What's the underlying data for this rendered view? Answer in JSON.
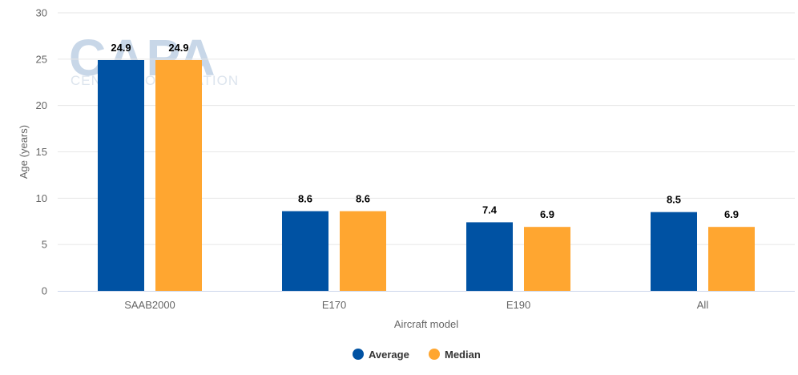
{
  "watermark": {
    "logo": "CAPA",
    "sub": "CENTRE FOR AVIATION"
  },
  "chart_data": {
    "type": "bar",
    "title": "",
    "xlabel": "Aircraft model",
    "ylabel": "Age (years)",
    "ylim": [
      0,
      30
    ],
    "yticks": [
      0,
      5,
      10,
      15,
      20,
      25,
      30
    ],
    "categories": [
      "SAAB2000",
      "E170",
      "E190",
      "All"
    ],
    "series": [
      {
        "name": "Average",
        "color": "#0052a3",
        "values": [
          24.9,
          8.6,
          7.4,
          8.5
        ]
      },
      {
        "name": "Median",
        "color": "#ffa630",
        "values": [
          24.9,
          8.6,
          6.9,
          6.9
        ]
      }
    ],
    "grid": true,
    "legend": "bottom-center",
    "data_labels": true
  }
}
